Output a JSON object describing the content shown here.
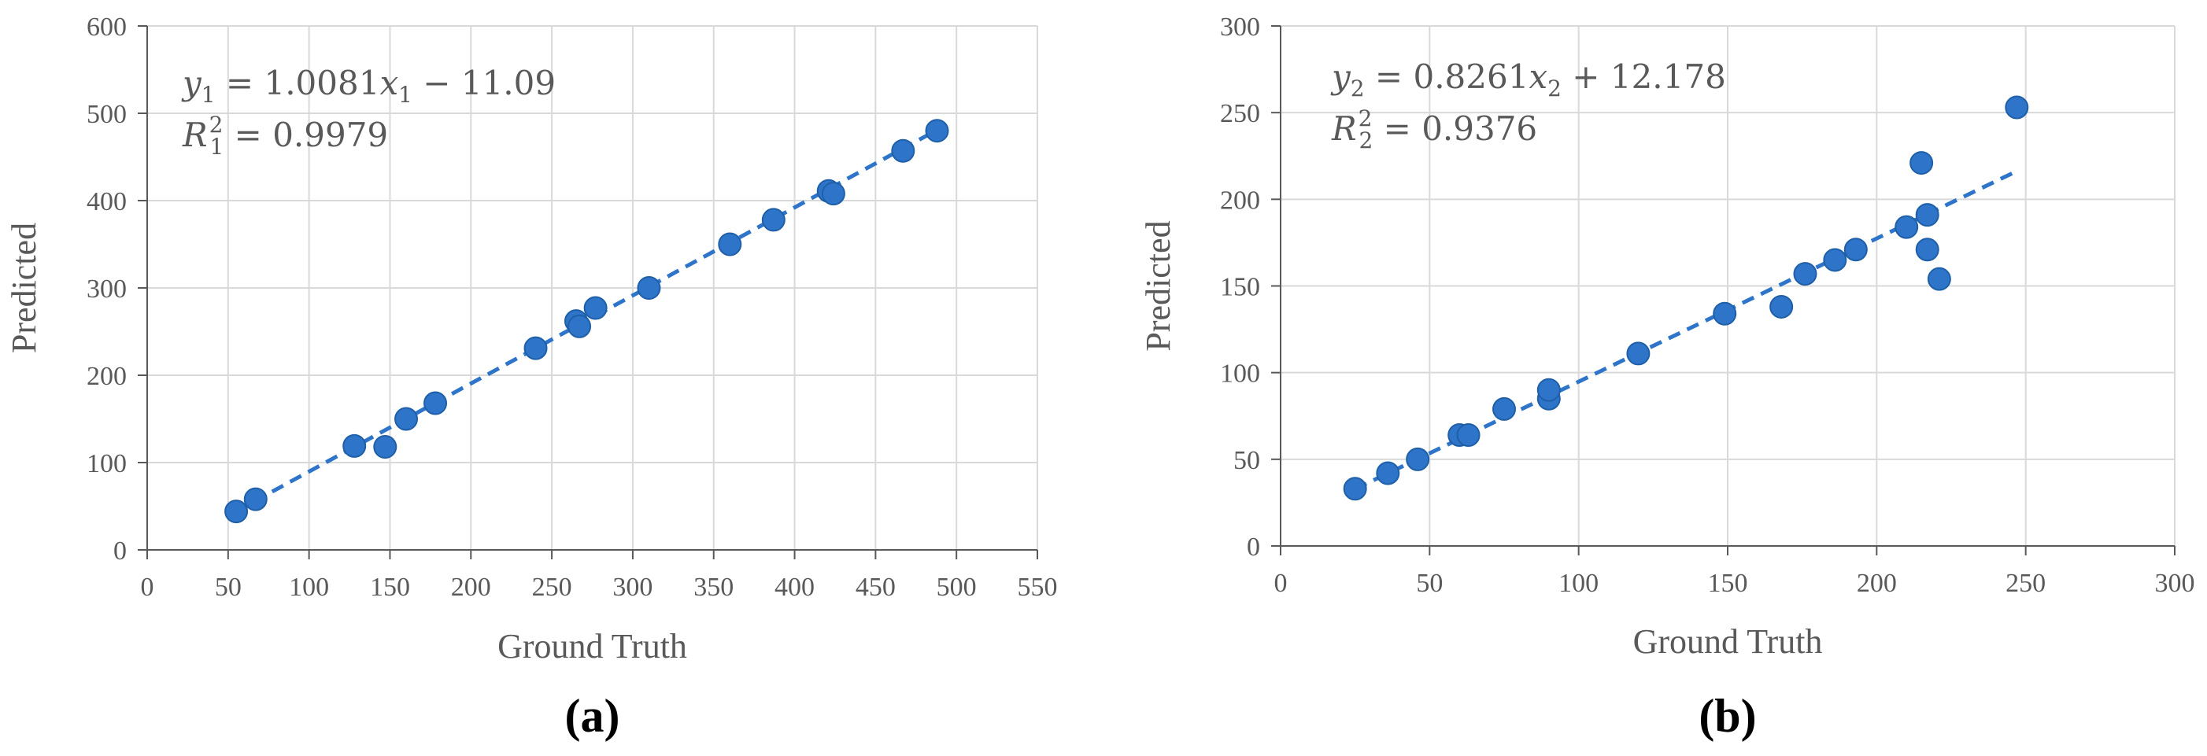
{
  "colors": {
    "point": "#2E75C9",
    "point_edge": "#1F5FA8",
    "trendline": "#2E75C9",
    "grid": "#D9D9D9",
    "axis": "#595959",
    "text": "#595959"
  },
  "chart_data": [
    {
      "type": "scatter",
      "panel_label": "(a)",
      "xlabel": "Ground Truth",
      "ylabel": "Predicted",
      "xlim": [
        0,
        550
      ],
      "ylim": [
        0,
        600
      ],
      "xticks": [
        0,
        50,
        100,
        150,
        200,
        250,
        300,
        350,
        400,
        450,
        500,
        550
      ],
      "yticks": [
        0,
        100,
        200,
        300,
        400,
        500,
        600
      ],
      "grid": true,
      "trendline": {
        "style": "dashed",
        "slope": 1.0081,
        "intercept": -11.09,
        "x_range": [
          55,
          488
        ]
      },
      "equation": {
        "y_var": "y",
        "x_var": "x",
        "sub": "1",
        "slope": "1.0081",
        "op": "−",
        "const": "11.09",
        "r2_label": "R",
        "r2_value": "0.9979"
      },
      "points": [
        [
          55,
          44
        ],
        [
          67,
          58
        ],
        [
          128,
          119
        ],
        [
          147,
          118
        ],
        [
          160,
          150
        ],
        [
          178,
          168
        ],
        [
          240,
          231
        ],
        [
          265,
          262
        ],
        [
          267,
          256
        ],
        [
          277,
          277
        ],
        [
          310,
          300
        ],
        [
          360,
          350
        ],
        [
          387,
          378
        ],
        [
          421,
          411
        ],
        [
          424,
          408
        ],
        [
          467,
          457
        ],
        [
          488,
          480
        ]
      ]
    },
    {
      "type": "scatter",
      "panel_label": "(b)",
      "xlabel": "Ground Truth",
      "ylabel": "Predicted",
      "xlim": [
        0,
        300
      ],
      "ylim": [
        0,
        300
      ],
      "xticks": [
        0,
        50,
        100,
        150,
        200,
        250,
        300
      ],
      "yticks": [
        0,
        50,
        100,
        150,
        200,
        250,
        300
      ],
      "grid": true,
      "trendline": {
        "style": "dashed",
        "slope": 0.8261,
        "intercept": 12.178,
        "x_range": [
          25,
          247
        ]
      },
      "equation": {
        "y_var": "y",
        "x_var": "x",
        "sub": "2",
        "slope": "0.8261",
        "op": "+",
        "const": "12.178",
        "r2_label": "R",
        "r2_value": "0.9376"
      },
      "points": [
        [
          25,
          33
        ],
        [
          36,
          42
        ],
        [
          46,
          50
        ],
        [
          60,
          64
        ],
        [
          63,
          64
        ],
        [
          75,
          79
        ],
        [
          90,
          85
        ],
        [
          90,
          90
        ],
        [
          120,
          111
        ],
        [
          149,
          134
        ],
        [
          168,
          138
        ],
        [
          176,
          157
        ],
        [
          186,
          165
        ],
        [
          193,
          171
        ],
        [
          210,
          184
        ],
        [
          215,
          221
        ],
        [
          217,
          191
        ],
        [
          217,
          171
        ],
        [
          221,
          154
        ],
        [
          247,
          253
        ]
      ]
    }
  ]
}
